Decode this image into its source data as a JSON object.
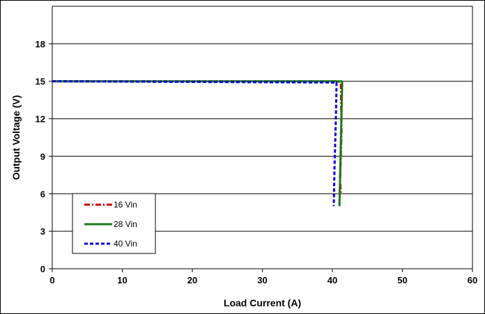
{
  "chart_data": {
    "type": "line",
    "title": "",
    "xlabel": "Load Current (A)",
    "ylabel": "Output Voltage (V)",
    "xlim": [
      0,
      60
    ],
    "ylim": [
      0,
      21
    ],
    "xticks": [
      0,
      10,
      20,
      30,
      40,
      50,
      60
    ],
    "yticks": [
      0,
      3,
      6,
      9,
      12,
      15,
      18
    ],
    "grid": "horizontal",
    "legend_position": "bottom-left",
    "series": [
      {
        "name": "16 Vin",
        "color": "#cc0000",
        "style": "dash-dot",
        "points": [
          [
            0,
            15.0
          ],
          [
            40.8,
            15.0
          ],
          [
            41.2,
            14.9
          ],
          [
            41.3,
            11.0
          ],
          [
            41.1,
            7.0
          ],
          [
            41.2,
            6.0
          ]
        ]
      },
      {
        "name": "28 Vin",
        "color": "#1a7a1a",
        "style": "solid",
        "points": [
          [
            0,
            15.0
          ],
          [
            41.3,
            15.0
          ],
          [
            41.4,
            14.9
          ],
          [
            41.2,
            10.0
          ],
          [
            41.1,
            7.5
          ],
          [
            41.0,
            5.0
          ]
        ]
      },
      {
        "name": "40 Vin",
        "color": "#0000dd",
        "style": "dashed",
        "points": [
          [
            0,
            15.0
          ],
          [
            40.6,
            14.9
          ],
          [
            40.5,
            12.0
          ],
          [
            40.3,
            8.0
          ],
          [
            40.2,
            5.0
          ]
        ]
      }
    ]
  }
}
